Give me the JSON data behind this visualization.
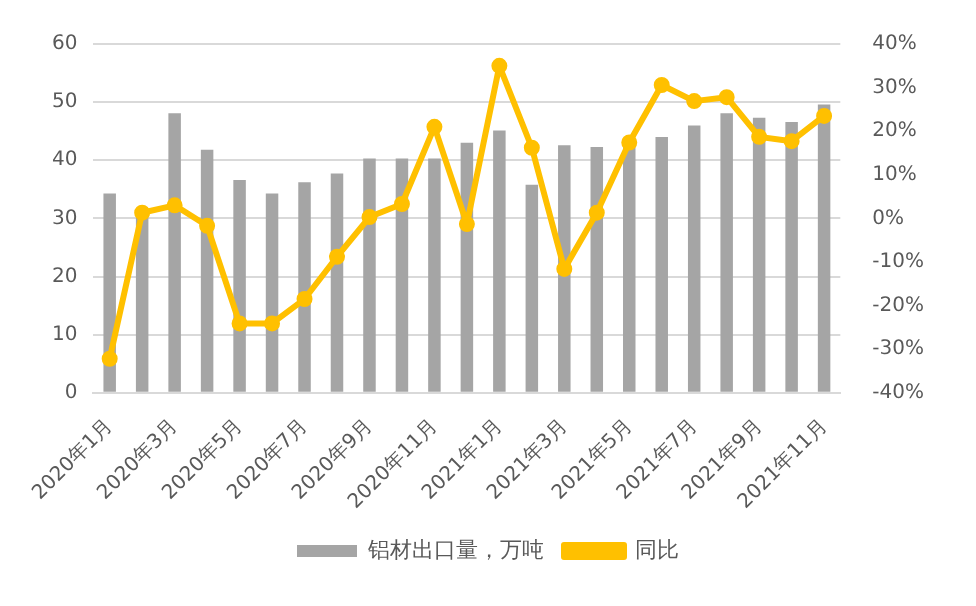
{
  "chart_data": {
    "type": "bar",
    "categories": [
      "2020年1月",
      null,
      "2020年3月",
      null,
      "2020年5月",
      null,
      "2020年7月",
      null,
      "2020年9月",
      null,
      "2020年11月",
      null,
      "2021年1月",
      null,
      "2021年3月",
      null,
      "2021年5月",
      null,
      "2021年7月",
      null,
      "2021年9月",
      null,
      "2021年11月"
    ],
    "series": [
      {
        "name": "铝材出口量，万吨",
        "color": "#a5a5a5",
        "values": [
          34.3,
          30.5,
          48.1,
          41.8,
          36.6,
          34.3,
          36.2,
          37.7,
          40.3,
          40.3,
          40.3,
          43.0,
          45.1,
          35.8,
          42.6,
          42.3,
          43.0,
          44.0,
          46.0,
          48.1,
          47.3,
          46.6,
          49.6
        ]
      },
      {
        "name": "同比",
        "type": "line",
        "axis": "y2",
        "color": "#ffc000",
        "marker": "circle",
        "values": [
          -32.2,
          1.3,
          3.0,
          -1.7,
          -24.1,
          -24.1,
          -18.5,
          -8.8,
          0.3,
          3.3,
          21.0,
          -1.3,
          35.0,
          16.2,
          -11.6,
          1.3,
          17.4,
          30.6,
          26.9,
          27.8,
          18.7,
          17.7,
          23.5
        ]
      }
    ],
    "ylim": [
      0,
      60
    ],
    "yticks": [
      0,
      10,
      20,
      30,
      40,
      50,
      60
    ],
    "y2lim": [
      -40,
      40
    ],
    "y2ticks": [
      {
        "value": -40,
        "label": "-40%"
      },
      {
        "value": -30,
        "label": "-30%"
      },
      {
        "value": -20,
        "label": "-20%"
      },
      {
        "value": -10,
        "label": "-10%"
      },
      {
        "value": 0,
        "label": "0%"
      },
      {
        "value": 10,
        "label": "10%"
      },
      {
        "value": 20,
        "label": "20%"
      },
      {
        "value": 30,
        "label": "30%"
      },
      {
        "value": 40,
        "label": "40%"
      }
    ],
    "grid": "y",
    "legend": "bottom"
  }
}
